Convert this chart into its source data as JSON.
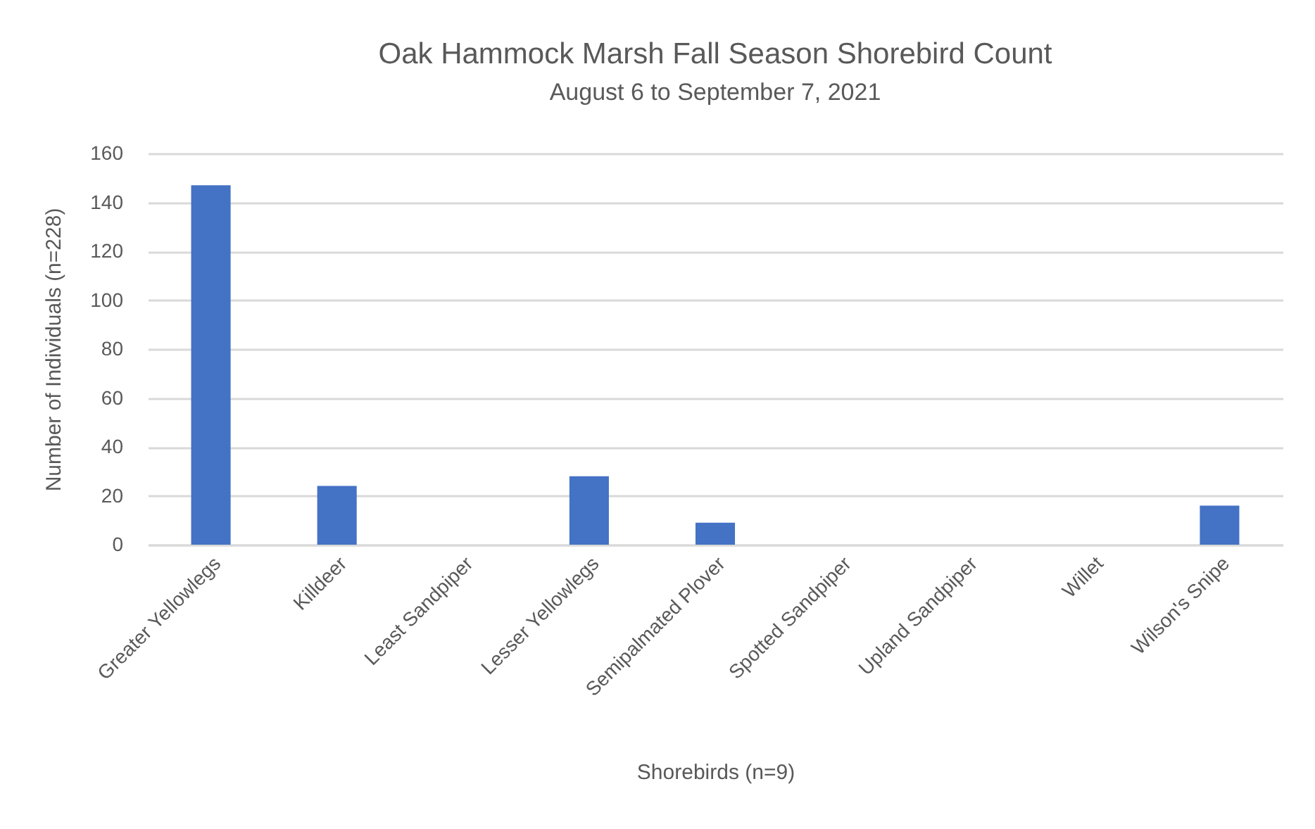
{
  "chart_data": {
    "type": "bar",
    "title": "Oak Hammock Marsh Fall Season Shorebird Count",
    "subtitle": "August 6 to September 7, 2021",
    "xlabel": "Shorebirds (n=9)",
    "ylabel": "Number of Individuals (n=228)",
    "categories": [
      "Greater Yellowlegs",
      "Killdeer",
      "Least Sandpiper",
      "Lesser Yellowlegs",
      "Semipalmated Plover",
      "Spotted Sandpiper",
      "Upland Sandpiper",
      "Willet",
      "Wilson's Snipe"
    ],
    "values": [
      147,
      24,
      0,
      28,
      9,
      0,
      0,
      0,
      16
    ],
    "color": "#4472c4",
    "ylim": [
      0,
      160
    ],
    "yticks": [
      0,
      20,
      40,
      60,
      80,
      100,
      120,
      140,
      160
    ],
    "grid": "y"
  }
}
